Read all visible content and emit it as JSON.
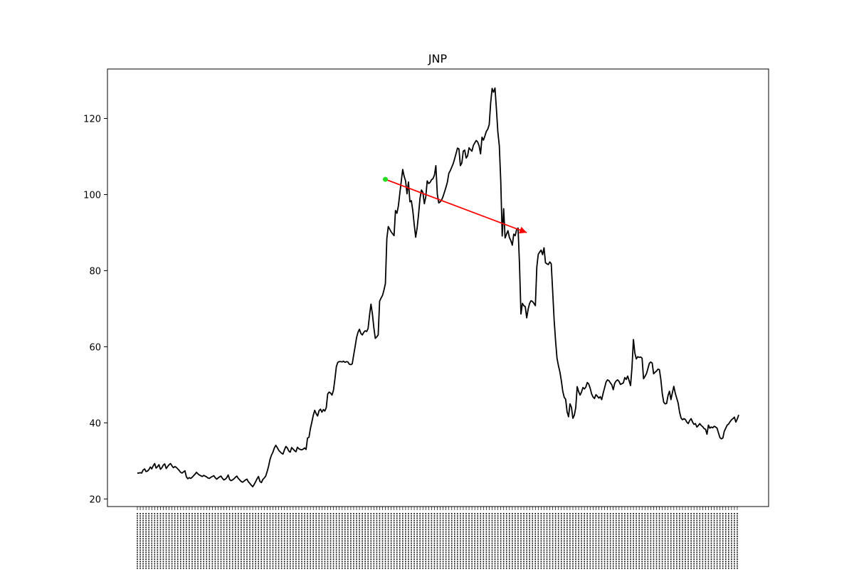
{
  "chart_data": {
    "type": "line",
    "title": "JNP",
    "xlabel": "",
    "ylabel": "",
    "ylim": [
      18,
      133
    ],
    "yticks": [
      20,
      40,
      60,
      80,
      100,
      120
    ],
    "grid": false,
    "line_color": "#000000",
    "series": [
      {
        "values": [
          26.8,
          26.8,
          26.9,
          26.8,
          27.6,
          27.9,
          27.2,
          27.3,
          27.7,
          28.4,
          27.9,
          28.7,
          29.3,
          28.1,
          28.5,
          29.0,
          27.8,
          28.2,
          28.9,
          29.2,
          28.0,
          28.5,
          29.0,
          29.3,
          28.7,
          28.2,
          28.5,
          28.3,
          27.9,
          27.5,
          27.0,
          26.8,
          27.1,
          27.4,
          25.8,
          25.3,
          25.6,
          25.4,
          25.7,
          26.1,
          26.5,
          27.0,
          26.6,
          26.3,
          26.1,
          25.9,
          26.2,
          26.0,
          25.8,
          25.5,
          25.4,
          25.7,
          25.9,
          26.1,
          25.6,
          25.2,
          25.5,
          25.8,
          26.0,
          25.4,
          25.0,
          25.2,
          25.6,
          26.3,
          25.1,
          24.8,
          25.0,
          25.3,
          25.7,
          26.0,
          25.4,
          25.0,
          24.6,
          24.4,
          24.7,
          25.0,
          25.2,
          24.5,
          24.1,
          23.6,
          23.2,
          23.8,
          24.5,
          25.3,
          25.9,
          24.6,
          24.3,
          25.1,
          25.5,
          26.0,
          27.2,
          28.6,
          30.4,
          31.5,
          32.3,
          33.4,
          34.1,
          33.5,
          32.8,
          32.4,
          32.0,
          31.8,
          32.9,
          33.8,
          33.4,
          32.6,
          32.3,
          33.5,
          33.1,
          32.7,
          32.4,
          33.6,
          33.2,
          33.0,
          32.9,
          33.1,
          33.4,
          33.0,
          36.0,
          36.2,
          38.5,
          40.2,
          42.0,
          43.3,
          42.4,
          41.8,
          43.2,
          43.6,
          42.8,
          43.5,
          43.1,
          44.0,
          47.6,
          48.1,
          47.8,
          47.3,
          48.6,
          51.5,
          54.8,
          55.9,
          56.1,
          56.1,
          56.0,
          56.2,
          55.9,
          56.1,
          56.0,
          55.4,
          55.3,
          55.5,
          57.8,
          60.0,
          62.4,
          63.8,
          64.6,
          63.5,
          63.1,
          63.8,
          64.2,
          64.0,
          64.8,
          68.3,
          71.2,
          68.6,
          65.0,
          62.2,
          62.6,
          63.1,
          72.0,
          72.8,
          73.5,
          74.9,
          76.6,
          88.4,
          91.6,
          90.9,
          90.2,
          89.7,
          89.2,
          95.8,
          95.1,
          97.0,
          100.3,
          103.5,
          106.6,
          104.8,
          103.6,
          100.2,
          103.3,
          98.1,
          98.4,
          95.8,
          92.1,
          88.8,
          91.2,
          94.8,
          99.0,
          101.2,
          100.6,
          97.6,
          99.4,
          103.6,
          102.9,
          103.2,
          103.9,
          104.2,
          105.1,
          107.6,
          100.1,
          97.8,
          98.1,
          98.6,
          99.5,
          100.7,
          101.9,
          103.3,
          105.6,
          106.3,
          107.2,
          108.1,
          109.4,
          110.8,
          112.2,
          112.0,
          107.6,
          108.3,
          111.4,
          111.7,
          109.6,
          110.2,
          112.3,
          111.8,
          111.4,
          112.9,
          113.6,
          114.2,
          113.8,
          112.8,
          110.7,
          115.1,
          114.3,
          115.4,
          116.6,
          117.2,
          118.4,
          124.1,
          127.9,
          126.9,
          128.0,
          122.4,
          116.4,
          112.8,
          103.5,
          89.1,
          96.3,
          88.6,
          89.6,
          90.5,
          88.7,
          87.9,
          86.7,
          89.6,
          89.2,
          90.8,
          91.2,
          81.6,
          68.6,
          71.4,
          70.8,
          70.5,
          67.6,
          69.9,
          71.4,
          72.1,
          71.9,
          71.4,
          70.8,
          81.0,
          84.3,
          84.9,
          85.4,
          84.2,
          86.0,
          82.1,
          81.8,
          81.6,
          82.3,
          81.8,
          74.6,
          67.1,
          61.6,
          57.0,
          55.0,
          53.4,
          51.1,
          48.3,
          46.7,
          46.2,
          42.9,
          41.6,
          45.0,
          44.1,
          41.2,
          42.0,
          44.0,
          49.5,
          48.2,
          47.3,
          48.1,
          49.3,
          48.9,
          49.4,
          50.6,
          50.2,
          49.1,
          47.6,
          46.8,
          46.4,
          47.4,
          47.0,
          46.5,
          46.9,
          46.1,
          47.8,
          49.2,
          50.7,
          51.3,
          51.1,
          50.5,
          50.0,
          48.7,
          50.4,
          51.0,
          51.3,
          50.9,
          50.1,
          50.3,
          50.5,
          51.9,
          51.4,
          52.3,
          51.1,
          49.8,
          54.6,
          61.9,
          58.3,
          56.8,
          57.4,
          57.2,
          57.3,
          57.0,
          51.6,
          52.2,
          52.9,
          54.2,
          55.6,
          56.0,
          55.7,
          52.9,
          53.3,
          53.6,
          54.1,
          54.0,
          51.4,
          47.7,
          45.4,
          45.0,
          45.1,
          47.2,
          48.3,
          46.1,
          47.9,
          49.6,
          47.8,
          46.5,
          45.2,
          42.8,
          41.3,
          40.8,
          41.1,
          40.9,
          40.2,
          39.8,
          40.6,
          41.1,
          40.2,
          39.6,
          39.8,
          38.9,
          39.3,
          39.8,
          39.3,
          39.0,
          38.5,
          38.3,
          37.0,
          39.4,
          38.6,
          38.9,
          38.7,
          39.1,
          38.9,
          38.6,
          37.3,
          36.1,
          35.8,
          36.0,
          37.8,
          38.6,
          39.4,
          39.7,
          40.3,
          40.8,
          41.1,
          41.5,
          40.2,
          41.0,
          42.1
        ]
      }
    ],
    "annotations": {
      "arrow": {
        "start_index": 172,
        "start_value": 104.0,
        "end_index": 270,
        "end_value": 90.0,
        "color": "#ff0000",
        "start_marker_color": "#22dd22"
      }
    }
  }
}
